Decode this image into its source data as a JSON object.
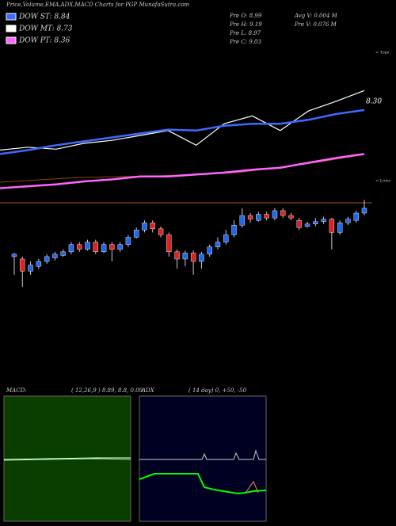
{
  "chart_data": {
    "type": "candlestick",
    "title": "Price,Volume,EMA,ADX,MACD Charts for PGP MunafaSutra.com",
    "legend": [
      "DOW ST: 8.84",
      "DOW MT: 8.73",
      "DOW PT: 8.36"
    ],
    "legend_colors": [
      "#3b6bff",
      "#ffffff",
      "#ff66ff"
    ],
    "stats": [
      "Pre  O: 8.99",
      "Pre  H: 9.19",
      "Pre  L: 8.97",
      "Pre  C: 9.03"
    ],
    "volume_stats": [
      "Avg V: 0.004  M",
      "Pre  V: 0.076  M"
    ],
    "annotations": [
      "8.30",
      "< Tops",
      "< Lows"
    ],
    "ylim": [
      8.3,
      9.25
    ],
    "candles": [
      [
        8.7,
        8.72,
        8.73,
        8.55
      ],
      [
        8.68,
        8.58,
        8.7,
        8.45
      ],
      [
        8.58,
        8.63,
        8.66,
        8.55
      ],
      [
        8.62,
        8.66,
        8.68,
        8.6
      ],
      [
        8.66,
        8.7,
        8.72,
        8.64
      ],
      [
        8.69,
        8.72,
        8.74,
        8.67
      ],
      [
        8.71,
        8.74,
        8.76,
        8.7
      ],
      [
        8.74,
        8.8,
        8.82,
        8.72
      ],
      [
        8.8,
        8.76,
        8.82,
        8.74
      ],
      [
        8.76,
        8.82,
        8.84,
        8.75
      ],
      [
        8.82,
        8.74,
        8.84,
        8.72
      ],
      [
        8.74,
        8.8,
        8.82,
        8.73
      ],
      [
        8.8,
        8.76,
        8.82,
        8.66
      ],
      [
        8.76,
        8.8,
        8.82,
        8.74
      ],
      [
        8.8,
        8.86,
        8.88,
        8.78
      ],
      [
        8.86,
        8.92,
        8.94,
        8.85
      ],
      [
        8.92,
        8.98,
        9.0,
        8.9
      ],
      [
        8.98,
        8.93,
        9.0,
        8.9
      ],
      [
        8.93,
        8.88,
        8.95,
        8.86
      ],
      [
        8.88,
        8.74,
        8.9,
        8.7
      ],
      [
        8.74,
        8.68,
        8.76,
        8.6
      ],
      [
        8.68,
        8.73,
        8.75,
        8.62
      ],
      [
        8.73,
        8.66,
        8.75,
        8.55
      ],
      [
        8.66,
        8.72,
        8.74,
        8.6
      ],
      [
        8.72,
        8.78,
        8.8,
        8.7
      ],
      [
        8.78,
        8.82,
        8.86,
        8.76
      ],
      [
        8.82,
        8.88,
        8.92,
        8.8
      ],
      [
        8.88,
        8.96,
        9.0,
        8.86
      ],
      [
        8.96,
        9.04,
        9.1,
        8.94
      ],
      [
        9.04,
        9.01,
        9.06,
        8.98
      ],
      [
        9.0,
        9.05,
        9.07,
        8.99
      ],
      [
        9.05,
        9.02,
        9.07,
        9.0
      ],
      [
        9.02,
        9.08,
        9.1,
        9.0
      ],
      [
        9.08,
        9.04,
        9.1,
        9.02
      ],
      [
        9.04,
        9.02,
        9.06,
        9.0
      ],
      [
        9.0,
        8.94,
        9.02,
        8.92
      ],
      [
        8.95,
        8.97,
        8.99,
        8.94
      ],
      [
        8.97,
        8.99,
        9.02,
        8.95
      ],
      [
        8.99,
        9.01,
        9.03,
        8.97
      ],
      [
        9.01,
        8.9,
        9.02,
        8.76
      ],
      [
        8.9,
        8.98,
        9.0,
        8.88
      ],
      [
        8.98,
        9.01,
        9.03,
        8.96
      ],
      [
        9.0,
        9.06,
        9.08,
        8.98
      ],
      [
        9.06,
        9.1,
        9.17,
        9.04
      ]
    ],
    "up_color": "#2266ee",
    "down_color": "#dd2222",
    "ema_ylim": [
      7.9,
      9.4
    ],
    "ema_lines": [
      {
        "color": "#ffffff",
        "values": [
          8.35,
          8.38,
          8.36,
          8.42,
          8.45,
          8.5,
          8.55,
          8.4,
          8.62,
          8.7,
          8.55,
          8.75,
          8.85,
          8.96
        ]
      },
      {
        "color": "#3b6bff",
        "values": [
          8.31,
          8.35,
          8.4,
          8.44,
          8.48,
          8.52,
          8.56,
          8.55,
          8.6,
          8.62,
          8.62,
          8.66,
          8.72,
          8.76
        ]
      },
      {
        "color": "#ff66ff",
        "values": [
          7.96,
          7.98,
          8.0,
          8.03,
          8.05,
          8.08,
          8.08,
          8.1,
          8.12,
          8.15,
          8.17,
          8.22,
          8.27,
          8.31
        ]
      }
    ],
    "macd_title": "MACD:",
    "macd_params": "( 12,26,9 ) 8.89,  8.8,  0.09",
    "adx_title": "ADX",
    "adx_params": "( 14  day) 0,  +50,  -50"
  }
}
